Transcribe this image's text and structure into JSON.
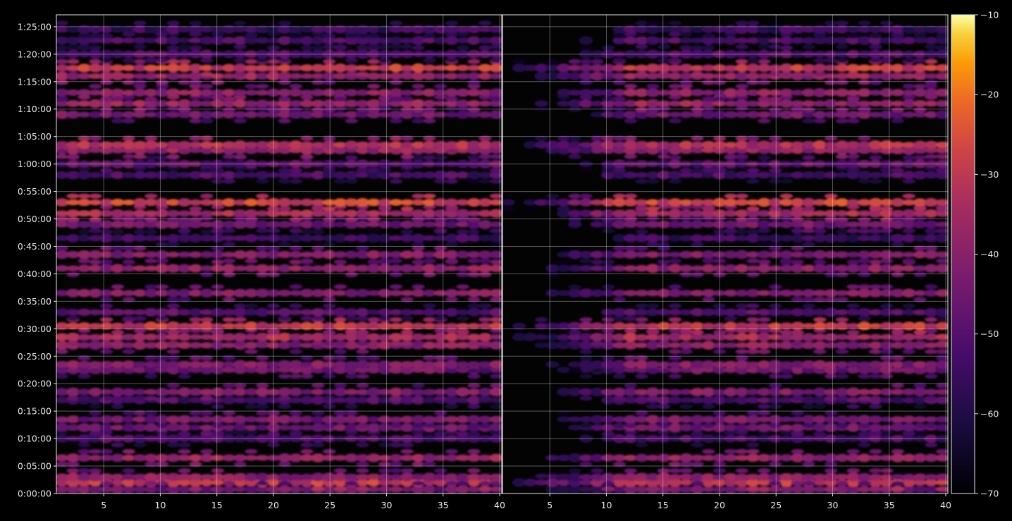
{
  "chart_data": {
    "type": "heatmap",
    "title": "",
    "xlabel": "",
    "ylabel": "",
    "x_ticks_left_panel": [
      "5",
      "10",
      "15",
      "20",
      "25",
      "30",
      "35",
      "40"
    ],
    "x_ticks_right_panel": [
      "5",
      "10",
      "15",
      "20",
      "25",
      "30",
      "35",
      "40"
    ],
    "x_range": [
      1,
      40
    ],
    "y_ticks": [
      "0:00:00",
      "0:05:00",
      "0:10:00",
      "0:15:00",
      "0:20:00",
      "0:25:00",
      "0:30:00",
      "0:35:00",
      "0:40:00",
      "0:45:00",
      "0:50:00",
      "0:55:00",
      "1:00:00",
      "1:05:00",
      "1:10:00",
      "1:15:00",
      "1:20:00",
      "1:25:00"
    ],
    "y_range_seconds": [
      0,
      5230
    ],
    "colorbar": {
      "colormap": "inferno",
      "ticks": [
        "−10",
        "−20",
        "−30",
        "−40",
        "−50",
        "−60",
        "−70"
      ],
      "range": [
        -70,
        -10
      ]
    },
    "grid": true,
    "row_levels": [
      {
        "t": "0:00:45",
        "v": -45
      },
      {
        "t": "0:02:00",
        "v": -30
      },
      {
        "t": "0:03:00",
        "v": -40
      },
      {
        "t": "0:06:30",
        "v": -38
      },
      {
        "t": "0:10:00",
        "v": -52
      },
      {
        "t": "0:12:00",
        "v": -45
      },
      {
        "t": "0:13:30",
        "v": -44
      },
      {
        "t": "0:17:00",
        "v": -52
      },
      {
        "t": "0:18:30",
        "v": -42
      },
      {
        "t": "0:22:30",
        "v": -45
      },
      {
        "t": "0:23:30",
        "v": -42
      },
      {
        "t": "0:27:00",
        "v": -40
      },
      {
        "t": "0:28:30",
        "v": -35
      },
      {
        "t": "0:30:30",
        "v": -30
      },
      {
        "t": "0:33:00",
        "v": -50
      },
      {
        "t": "0:36:30",
        "v": -42
      },
      {
        "t": "0:41:00",
        "v": -40
      },
      {
        "t": "0:43:30",
        "v": -42
      },
      {
        "t": "0:46:30",
        "v": -55
      },
      {
        "t": "0:49:00",
        "v": -45
      },
      {
        "t": "0:51:00",
        "v": -35
      },
      {
        "t": "0:53:00",
        "v": -28
      },
      {
        "t": "0:58:00",
        "v": -52
      },
      {
        "t": "1:00:00",
        "v": -48
      },
      {
        "t": "1:02:30",
        "v": -38
      },
      {
        "t": "1:03:30",
        "v": -33
      },
      {
        "t": "1:09:00",
        "v": -45
      },
      {
        "t": "1:11:00",
        "v": -38
      },
      {
        "t": "1:13:00",
        "v": -40
      },
      {
        "t": "1:16:00",
        "v": -38
      },
      {
        "t": "1:17:30",
        "v": -30
      },
      {
        "t": "1:20:00",
        "v": -50
      },
      {
        "t": "1:22:30",
        "v": -52
      },
      {
        "t": "1:24:30",
        "v": -55
      }
    ]
  }
}
